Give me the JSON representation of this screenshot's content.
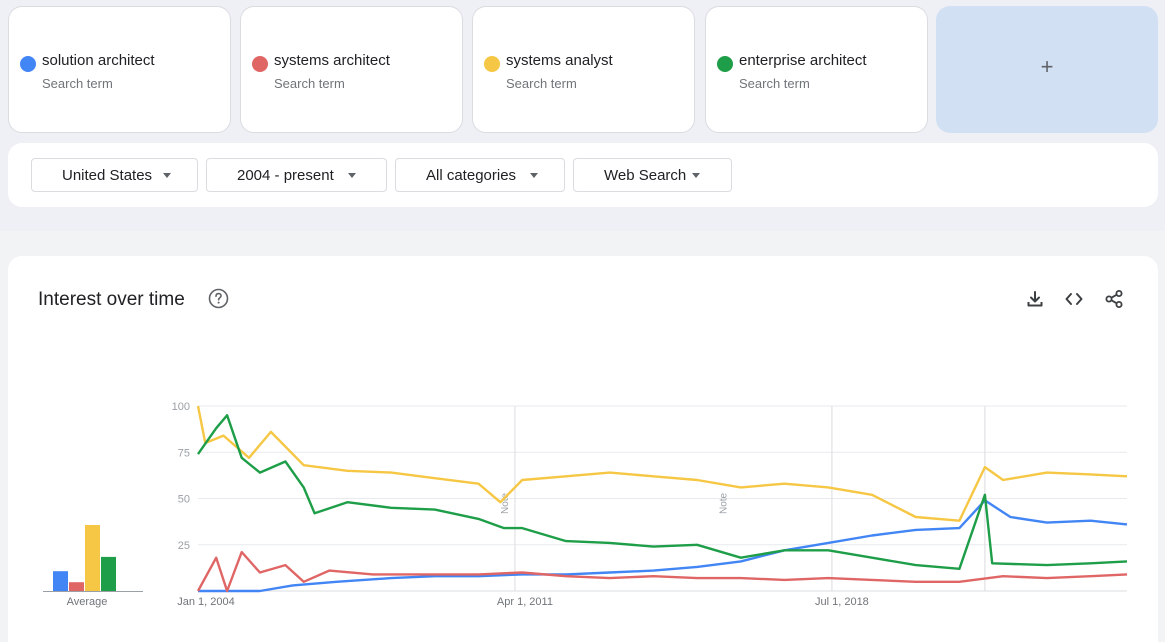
{
  "terms": [
    {
      "name": "solution architect",
      "sub": "Search term",
      "color": "#4285f4"
    },
    {
      "name": "systems architect",
      "sub": "Search term",
      "color": "#e06666"
    },
    {
      "name": "systems analyst",
      "sub": "Search term",
      "color": "#f6c744"
    },
    {
      "name": "enterprise architect",
      "sub": "Search term",
      "color": "#1e9e48"
    }
  ],
  "add_term": {
    "label": "+"
  },
  "filters": {
    "region": "United States",
    "time": "2004 - present",
    "category": "All categories",
    "property": "Web Search"
  },
  "chart_section": {
    "title": "Interest over time",
    "icons": [
      "help-icon",
      "download-icon",
      "embed-icon",
      "share-icon"
    ],
    "average_label": "Average"
  },
  "chart_data": [
    {
      "type": "bar",
      "xlabel": "Average",
      "categories": [
        "solution architect",
        "systems architect",
        "systems analyst",
        "enterprise architect"
      ],
      "values": [
        18,
        8,
        60,
        31
      ],
      "ylim": [
        0,
        100
      ],
      "colors": [
        "#4285f4",
        "#e06666",
        "#f6c744",
        "#1e9e48"
      ]
    },
    {
      "type": "line",
      "ylim": [
        0,
        100
      ],
      "y_ticks": [
        "100",
        "75",
        "50",
        "25"
      ],
      "x_tick_labels": [
        "Jan 1, 2004",
        "Apr 1, 2011",
        "Jul 1, 2018"
      ],
      "x_range": [
        "2004-01",
        "2025-04"
      ],
      "notes": [
        {
          "label": "Note",
          "date": "2011-01"
        },
        {
          "label": "Note",
          "date": "2016-01"
        }
      ],
      "series": [
        {
          "name": "solution architect",
          "color": "#4285f4",
          "points": [
            [
              "2004-01",
              0
            ],
            [
              "2005-06",
              0
            ],
            [
              "2006-03",
              3
            ],
            [
              "2007-03",
              5
            ],
            [
              "2008-06",
              7
            ],
            [
              "2009-06",
              8
            ],
            [
              "2010-06",
              8
            ],
            [
              "2011-06",
              9
            ],
            [
              "2012-06",
              9
            ],
            [
              "2013-06",
              10
            ],
            [
              "2014-06",
              11
            ],
            [
              "2015-06",
              13
            ],
            [
              "2016-06",
              16
            ],
            [
              "2017-06",
              22
            ],
            [
              "2018-06",
              26
            ],
            [
              "2019-06",
              30
            ],
            [
              "2020-06",
              33
            ],
            [
              "2021-06",
              34
            ],
            [
              "2022-01",
              49
            ],
            [
              "2022-08",
              40
            ],
            [
              "2023-06",
              37
            ],
            [
              "2024-06",
              38
            ],
            [
              "2025-04",
              36
            ]
          ]
        },
        {
          "name": "systems architect",
          "color": "#e06666",
          "points": [
            [
              "2004-01",
              0
            ],
            [
              "2004-06",
              18
            ],
            [
              "2004-09",
              0
            ],
            [
              "2005-01",
              21
            ],
            [
              "2005-06",
              10
            ],
            [
              "2006-01",
              14
            ],
            [
              "2006-06",
              5
            ],
            [
              "2007-01",
              11
            ],
            [
              "2008-01",
              9
            ],
            [
              "2009-06",
              9
            ],
            [
              "2010-06",
              9
            ],
            [
              "2011-06",
              10
            ],
            [
              "2012-06",
              8
            ],
            [
              "2013-06",
              7
            ],
            [
              "2014-06",
              8
            ],
            [
              "2015-06",
              7
            ],
            [
              "2016-06",
              7
            ],
            [
              "2017-06",
              6
            ],
            [
              "2018-06",
              7
            ],
            [
              "2019-06",
              6
            ],
            [
              "2020-06",
              5
            ],
            [
              "2021-06",
              5
            ],
            [
              "2022-06",
              8
            ],
            [
              "2023-06",
              7
            ],
            [
              "2024-06",
              8
            ],
            [
              "2025-04",
              9
            ]
          ]
        },
        {
          "name": "systems analyst",
          "color": "#f6c744",
          "points": [
            [
              "2004-01",
              100
            ],
            [
              "2004-03",
              80
            ],
            [
              "2004-08",
              84
            ],
            [
              "2005-03",
              72
            ],
            [
              "2005-09",
              86
            ],
            [
              "2006-06",
              68
            ],
            [
              "2007-06",
              65
            ],
            [
              "2008-06",
              64
            ],
            [
              "2009-06",
              61
            ],
            [
              "2010-06",
              58
            ],
            [
              "2010-12",
              48
            ],
            [
              "2011-06",
              60
            ],
            [
              "2012-06",
              62
            ],
            [
              "2013-06",
              64
            ],
            [
              "2014-06",
              62
            ],
            [
              "2015-06",
              60
            ],
            [
              "2016-06",
              56
            ],
            [
              "2017-06",
              58
            ],
            [
              "2018-06",
              56
            ],
            [
              "2019-06",
              52
            ],
            [
              "2020-06",
              40
            ],
            [
              "2021-06",
              38
            ],
            [
              "2022-01",
              67
            ],
            [
              "2022-06",
              60
            ],
            [
              "2023-06",
              64
            ],
            [
              "2024-06",
              63
            ],
            [
              "2025-04",
              62
            ]
          ]
        },
        {
          "name": "enterprise architect",
          "color": "#1e9e48",
          "points": [
            [
              "2004-01",
              74
            ],
            [
              "2004-06",
              88
            ],
            [
              "2004-09",
              95
            ],
            [
              "2005-01",
              72
            ],
            [
              "2005-06",
              64
            ],
            [
              "2006-01",
              70
            ],
            [
              "2006-06",
              56
            ],
            [
              "2006-09",
              42
            ],
            [
              "2007-06",
              48
            ],
            [
              "2008-06",
              45
            ],
            [
              "2009-06",
              44
            ],
            [
              "2010-06",
              39
            ],
            [
              "2011-01",
              34
            ],
            [
              "2011-06",
              34
            ],
            [
              "2012-06",
              27
            ],
            [
              "2013-06",
              26
            ],
            [
              "2014-06",
              24
            ],
            [
              "2015-06",
              25
            ],
            [
              "2016-06",
              18
            ],
            [
              "2017-06",
              22
            ],
            [
              "2018-06",
              22
            ],
            [
              "2019-06",
              18
            ],
            [
              "2020-06",
              14
            ],
            [
              "2021-06",
              12
            ],
            [
              "2022-01",
              52
            ],
            [
              "2022-03",
              15
            ],
            [
              "2023-06",
              14
            ],
            [
              "2024-06",
              15
            ],
            [
              "2025-04",
              16
            ]
          ]
        }
      ]
    }
  ]
}
